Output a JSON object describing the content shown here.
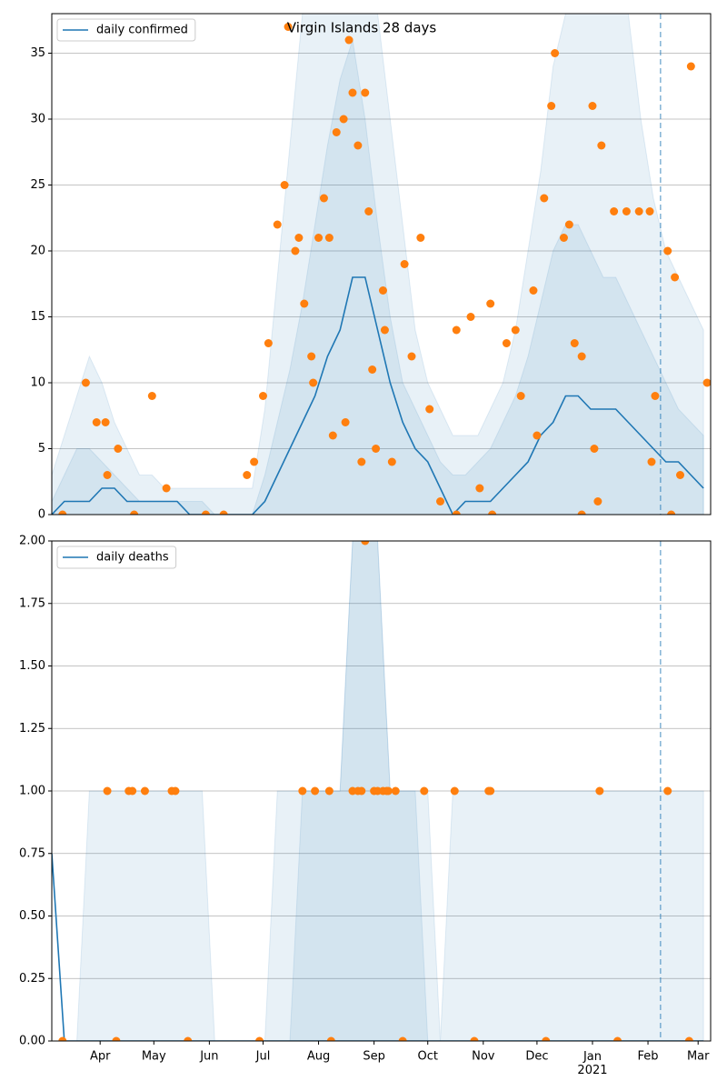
{
  "chart_data": [
    {
      "type": "line",
      "title": "Virgin Islands 28 days",
      "x": [
        4,
        11,
        18,
        25,
        32,
        39,
        46,
        53,
        60,
        67,
        74,
        81,
        88,
        95,
        102,
        109,
        116,
        123,
        130,
        137,
        144,
        151,
        158,
        165,
        172,
        179,
        186,
        193,
        200,
        207,
        214,
        221,
        228,
        235,
        242,
        249,
        256,
        263,
        270,
        277,
        284,
        291,
        298,
        305,
        312,
        319,
        326,
        333,
        340,
        347,
        354,
        361,
        368
      ],
      "series": [
        {
          "name": "daily confirmed",
          "color": "#1f77b4",
          "values": [
            0,
            1,
            1,
            1,
            2,
            2,
            1,
            1,
            1,
            1,
            1,
            0,
            0,
            0,
            0,
            0,
            0,
            1,
            3,
            5,
            7,
            9,
            12,
            14,
            18,
            18,
            14,
            10,
            7,
            5,
            4,
            2,
            0,
            1,
            1,
            1,
            2,
            3,
            4,
            6,
            7,
            9,
            9,
            8,
            8,
            8,
            7,
            6,
            5,
            4,
            4,
            3,
            2
          ]
        }
      ],
      "bands": [
        {
          "lower": [
            0,
            0,
            0,
            0,
            0,
            0,
            0,
            0,
            0,
            0,
            0,
            0,
            0,
            0,
            0,
            0,
            0,
            0,
            0,
            0,
            0,
            0,
            0,
            0,
            0,
            0,
            0,
            0,
            0,
            0,
            0,
            0,
            0,
            0,
            0,
            0,
            0,
            0,
            0,
            0,
            0,
            0,
            0,
            0,
            0,
            0,
            0,
            0,
            0,
            0,
            0,
            0,
            0
          ],
          "upper": [
            3,
            6,
            9,
            12,
            10,
            7,
            5,
            3,
            3,
            2,
            2,
            2,
            2,
            2,
            2,
            2,
            2,
            8,
            18,
            28,
            38,
            38,
            38,
            38,
            38,
            38,
            38,
            30,
            22,
            14,
            10,
            8,
            6,
            6,
            6,
            8,
            10,
            14,
            20,
            26,
            34,
            38,
            38,
            38,
            38,
            38,
            38,
            30,
            24,
            20,
            18,
            16,
            14
          ]
        },
        {
          "lower": [
            0,
            0,
            0,
            0,
            0,
            0,
            0,
            0,
            0,
            0,
            0,
            0,
            0,
            0,
            0,
            0,
            0,
            0,
            0,
            0,
            0,
            0,
            0,
            0,
            0,
            0,
            0,
            0,
            0,
            0,
            0,
            0,
            0,
            0,
            0,
            0,
            0,
            0,
            0,
            0,
            0,
            0,
            0,
            0,
            0,
            0,
            0,
            0,
            0,
            0,
            0,
            0,
            0
          ],
          "upper": [
            1,
            3,
            5,
            5,
            4,
            3,
            2,
            1,
            1,
            1,
            1,
            1,
            1,
            0,
            0,
            0,
            0,
            3,
            7,
            11,
            16,
            22,
            28,
            33,
            36,
            30,
            22,
            15,
            10,
            8,
            6,
            4,
            3,
            3,
            4,
            5,
            7,
            9,
            12,
            16,
            20,
            22,
            22,
            20,
            18,
            18,
            16,
            14,
            12,
            10,
            8,
            7,
            6
          ]
        }
      ],
      "band_color": "#1f77b4",
      "points": {
        "color": "#ff7f0e",
        "x": [
          23,
          29,
          34,
          35,
          41,
          60,
          68,
          113,
          117,
          122,
          125,
          130,
          134,
          136,
          140,
          142,
          145,
          149,
          153,
          156,
          159,
          163,
          167,
          170,
          172,
          175,
          179,
          181,
          183,
          189,
          190,
          201,
          210,
          215,
          230,
          238,
          249,
          258,
          263,
          273,
          279,
          283,
          285,
          290,
          293,
          296,
          300,
          306,
          311,
          318,
          325,
          332,
          338,
          348,
          352,
          361,
          370,
          150,
          161,
          168,
          177,
          185,
          194,
          205,
          221,
          243,
          266,
          275,
          307,
          309,
          339,
          341,
          355,
          10,
          50,
          90,
          100,
          230,
          250,
          300,
          350
        ],
        "values": [
          10,
          7,
          7,
          3,
          5,
          9,
          2,
          3,
          4,
          9,
          13,
          22,
          25,
          37,
          20,
          21,
          16,
          12,
          21,
          24,
          21,
          29,
          30,
          36,
          32,
          28,
          32,
          23,
          11,
          17,
          14,
          19,
          21,
          8,
          14,
          15,
          16,
          13,
          14,
          17,
          24,
          31,
          35,
          21,
          22,
          13,
          12,
          31,
          28,
          23,
          23,
          23,
          23,
          20,
          18,
          34,
          10,
          10,
          6,
          7,
          4,
          5,
          4,
          12,
          1,
          2,
          9,
          6,
          5,
          1,
          4,
          9,
          3,
          0,
          0,
          0,
          0,
          0,
          0,
          0,
          0
        ]
      },
      "vline": 344,
      "xlim": [
        4,
        372
      ],
      "ylim": [
        0,
        38
      ],
      "yticks": [
        0,
        5,
        10,
        15,
        20,
        25,
        30,
        35
      ],
      "grid": true,
      "legend": "upper left"
    },
    {
      "type": "line",
      "x": [
        4,
        11,
        18,
        25,
        32,
        39,
        46,
        53,
        60,
        67,
        74,
        81,
        88,
        95,
        102,
        109,
        116,
        123,
        130,
        137,
        144,
        151,
        158,
        165,
        172,
        179,
        186,
        193,
        200,
        207,
        214,
        221,
        228,
        235,
        242,
        249,
        256,
        263,
        270,
        277,
        284,
        291,
        298,
        305,
        312,
        319,
        326,
        333,
        340,
        347,
        354,
        361,
        368
      ],
      "series": [
        {
          "name": "daily deaths",
          "color": "#1f77b4",
          "values": [
            0.75,
            0,
            0,
            0,
            0,
            0,
            0,
            0,
            0,
            0,
            0,
            0,
            0,
            0,
            0,
            0,
            0,
            0,
            0,
            0,
            0,
            0,
            0,
            0,
            0,
            0,
            0,
            0,
            0,
            0,
            0,
            0,
            0,
            0,
            0,
            0,
            0,
            0,
            0,
            0,
            0,
            0,
            0,
            0,
            0,
            0,
            0,
            0,
            0,
            0,
            0,
            0,
            0
          ]
        }
      ],
      "bands": [
        {
          "lower": [
            0,
            0,
            0,
            0,
            0,
            0,
            0,
            0,
            0,
            0,
            0,
            0,
            0,
            0,
            0,
            0,
            0,
            0,
            0,
            0,
            0,
            0,
            0,
            0,
            0,
            0,
            0,
            0,
            0,
            0,
            0,
            0,
            0,
            0,
            0,
            0,
            0,
            0,
            0,
            0,
            0,
            0,
            0,
            0,
            0,
            0,
            0,
            0,
            0,
            0,
            0,
            0,
            0
          ],
          "upper": [
            0,
            0,
            0,
            1,
            1,
            1,
            1,
            1,
            1,
            1,
            1,
            1,
            1,
            0,
            0,
            0,
            0,
            0,
            1,
            1,
            1,
            1,
            1,
            1,
            2,
            2,
            2,
            1,
            1,
            1,
            1,
            0,
            1,
            1,
            1,
            1,
            1,
            1,
            1,
            1,
            1,
            1,
            1,
            1,
            1,
            1,
            1,
            1,
            1,
            1,
            1,
            1,
            1
          ]
        },
        {
          "lower": [
            0,
            0,
            0,
            0,
            0,
            0,
            0,
            0,
            0,
            0,
            0,
            0,
            0,
            0,
            0,
            0,
            0,
            0,
            0,
            0,
            0,
            0,
            0,
            0,
            0,
            0,
            0,
            0,
            0,
            0,
            0,
            0,
            0,
            0,
            0,
            0,
            0,
            0,
            0,
            0,
            0,
            0,
            0,
            0,
            0,
            0,
            0,
            0,
            0,
            0,
            0,
            0,
            0
          ],
          "upper": [
            0,
            0,
            0,
            0,
            0,
            0,
            0,
            0,
            0,
            0,
            0,
            0,
            0,
            0,
            0,
            0,
            0,
            0,
            0,
            0,
            1,
            1,
            1,
            1,
            2,
            2,
            2,
            1,
            1,
            1,
            0,
            0,
            0,
            0,
            0,
            0,
            0,
            0,
            0,
            0,
            0,
            0,
            0,
            0,
            0,
            0,
            0,
            0,
            0,
            0,
            0,
            0,
            0
          ]
        }
      ],
      "band_color": "#1f77b4",
      "points": {
        "color": "#ff7f0e",
        "x": [
          35,
          47,
          49,
          56,
          71,
          73,
          144,
          151,
          159,
          172,
          175,
          177,
          184,
          186,
          189,
          191,
          192,
          196,
          212,
          229,
          248,
          249,
          310,
          348,
          179,
          10,
          40,
          80,
          120,
          160,
          200,
          240,
          280,
          320,
          360
        ],
        "values": [
          1,
          1,
          1,
          1,
          1,
          1,
          1,
          1,
          1,
          1,
          1,
          1,
          1,
          1,
          1,
          1,
          1,
          1,
          1,
          1,
          1,
          1,
          1,
          1,
          2,
          0,
          0,
          0,
          0,
          0,
          0,
          0,
          0,
          0,
          0
        ]
      },
      "vline": 344,
      "xlim": [
        4,
        372
      ],
      "xticks": [
        {
          "value": 31,
          "label": "Apr"
        },
        {
          "value": 61,
          "label": "May"
        },
        {
          "value": 92,
          "label": "Jun"
        },
        {
          "value": 122,
          "label": "Jul"
        },
        {
          "value": 153,
          "label": "Aug"
        },
        {
          "value": 184,
          "label": "Sep"
        },
        {
          "value": 214,
          "label": "Oct"
        },
        {
          "value": 245,
          "label": "Nov"
        },
        {
          "value": 275,
          "label": "Dec"
        },
        {
          "value": 306,
          "label": "Jan\n2021"
        },
        {
          "value": 337,
          "label": "Feb"
        },
        {
          "value": 365,
          "label": "Mar"
        }
      ],
      "ylim": [
        0,
        2
      ],
      "yticks": [
        {
          "value": 0,
          "label": "0.00"
        },
        {
          "value": 0.25,
          "label": "0.25"
        },
        {
          "value": 0.5,
          "label": "0.50"
        },
        {
          "value": 0.75,
          "label": "0.75"
        },
        {
          "value": 1,
          "label": "1.00"
        },
        {
          "value": 1.25,
          "label": "1.25"
        },
        {
          "value": 1.5,
          "label": "1.50"
        },
        {
          "value": 1.75,
          "label": "1.75"
        },
        {
          "value": 2,
          "label": "2.00"
        }
      ],
      "grid": true,
      "legend": "upper left"
    }
  ]
}
